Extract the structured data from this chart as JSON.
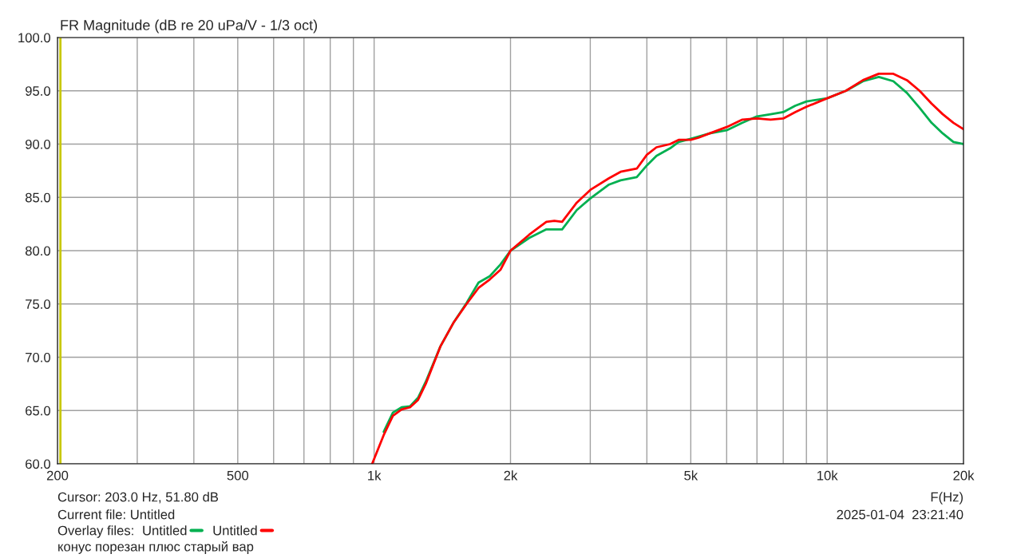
{
  "chart_data": {
    "type": "line",
    "title": "FR Magnitude (dB re 20 uPa/V - 1/3 oct)",
    "xlabel": "F(Hz)",
    "x": [
      990,
      1050,
      1100,
      1150,
      1200,
      1250,
      1300,
      1400,
      1500,
      1600,
      1700,
      1800,
      1900,
      2000,
      2200,
      2400,
      2500,
      2600,
      2800,
      3000,
      3300,
      3500,
      3800,
      4000,
      4200,
      4500,
      4700,
      5000,
      5200,
      5500,
      6000,
      6500,
      7000,
      7500,
      8000,
      8500,
      9000,
      10000,
      11000,
      12000,
      13000,
      14000,
      15000,
      16000,
      17000,
      18000,
      19000,
      20000
    ],
    "series": [
      {
        "name": "Untitled",
        "color": "#00b050",
        "values": [
          null,
          63.0,
          64.8,
          65.3,
          65.4,
          66.2,
          67.7,
          71.0,
          73.3,
          75.1,
          77.0,
          77.6,
          78.7,
          80.0,
          81.2,
          82.0,
          82.0,
          82.0,
          83.8,
          84.9,
          86.2,
          86.6,
          86.9,
          88.0,
          88.9,
          89.6,
          90.2,
          90.5,
          90.7,
          91.0,
          91.3,
          92.0,
          92.6,
          92.8,
          93.0,
          93.6,
          94.0,
          94.3,
          95.0,
          95.9,
          96.3,
          95.9,
          94.8,
          93.4,
          92.0,
          91.0,
          90.2,
          90.0
        ]
      },
      {
        "name": "Untitled",
        "color": "#ff0000",
        "values": [
          60.0,
          62.7,
          64.5,
          65.1,
          65.3,
          66.0,
          67.5,
          71.0,
          73.3,
          75.0,
          76.5,
          77.3,
          78.2,
          80.0,
          81.5,
          82.7,
          82.8,
          82.7,
          84.5,
          85.7,
          86.8,
          87.4,
          87.7,
          89.0,
          89.7,
          90.0,
          90.4,
          90.4,
          90.6,
          91.0,
          91.6,
          92.3,
          92.4,
          92.3,
          92.4,
          93.0,
          93.5,
          94.3,
          95.0,
          96.0,
          96.6,
          96.6,
          96.0,
          95.0,
          93.8,
          92.8,
          92.0,
          91.4
        ]
      }
    ],
    "log": "x",
    "xlim": [
      200,
      20000
    ],
    "ylim": [
      60,
      100
    ],
    "xticks": [
      200,
      {
        "value": 300,
        "label": null
      },
      {
        "value": 400,
        "label": null
      },
      500,
      {
        "value": 600,
        "label": null
      },
      {
        "value": 700,
        "label": null
      },
      {
        "value": 800,
        "label": null
      },
      {
        "value": 900,
        "label": null
      },
      {
        "value": 1000,
        "label": "1k"
      },
      {
        "value": 2000,
        "label": "2k"
      },
      {
        "value": 3000,
        "label": null
      },
      {
        "value": 4000,
        "label": null
      },
      {
        "value": 5000,
        "label": "5k"
      },
      {
        "value": 6000,
        "label": null
      },
      {
        "value": 7000,
        "label": null
      },
      {
        "value": 8000,
        "label": null
      },
      {
        "value": 9000,
        "label": null
      },
      {
        "value": 10000,
        "label": "10k"
      },
      {
        "value": 20000,
        "label": "20k"
      }
    ],
    "yticks": [
      {
        "value": 60,
        "label": "60.0"
      },
      {
        "value": 65,
        "label": "65.0"
      },
      {
        "value": 70,
        "label": "70.0"
      },
      {
        "value": 75,
        "label": "75.0"
      },
      {
        "value": 80,
        "label": "80.0"
      },
      {
        "value": 85,
        "label": "85.0"
      },
      {
        "value": 90,
        "label": "90.0"
      },
      {
        "value": 95,
        "label": "95.0"
      },
      {
        "value": 100,
        "label": "100.0"
      }
    ],
    "grid": true,
    "legend": "bottom left",
    "line_style": "solid",
    "marker": "none",
    "ref_lines": [
      {
        "axis": "x",
        "value": 203,
        "color": "#c8c800"
      }
    ],
    "annotations": [
      "Cursor: 203.0 Hz, 51.80 dB",
      "Current file: Untitled",
      "Overlay files:",
      "конус порезан плюс старый вар",
      "2025-01-04  23:21:40"
    ]
  }
}
